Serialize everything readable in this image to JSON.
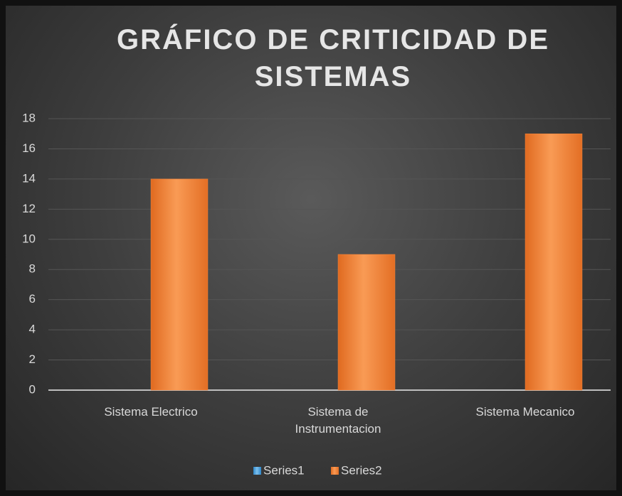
{
  "chart_data": {
    "type": "bar",
    "title": "GRÁFICO DE CRITICIDAD DE SISTEMAS",
    "categories": [
      "Sistema Electrico",
      "Sistema de Instrumentacion",
      "Sistema Mecanico"
    ],
    "series": [
      {
        "name": "Series1",
        "color": "#4aa3df",
        "values": [
          null,
          null,
          null
        ]
      },
      {
        "name": "Series2",
        "color": "#f0843c",
        "values": [
          14,
          9,
          17
        ]
      }
    ],
    "ylim": [
      0,
      18
    ],
    "yticks": [
      0,
      2,
      4,
      6,
      8,
      10,
      12,
      14,
      16,
      18
    ],
    "grid": true,
    "legend": "bottom"
  }
}
